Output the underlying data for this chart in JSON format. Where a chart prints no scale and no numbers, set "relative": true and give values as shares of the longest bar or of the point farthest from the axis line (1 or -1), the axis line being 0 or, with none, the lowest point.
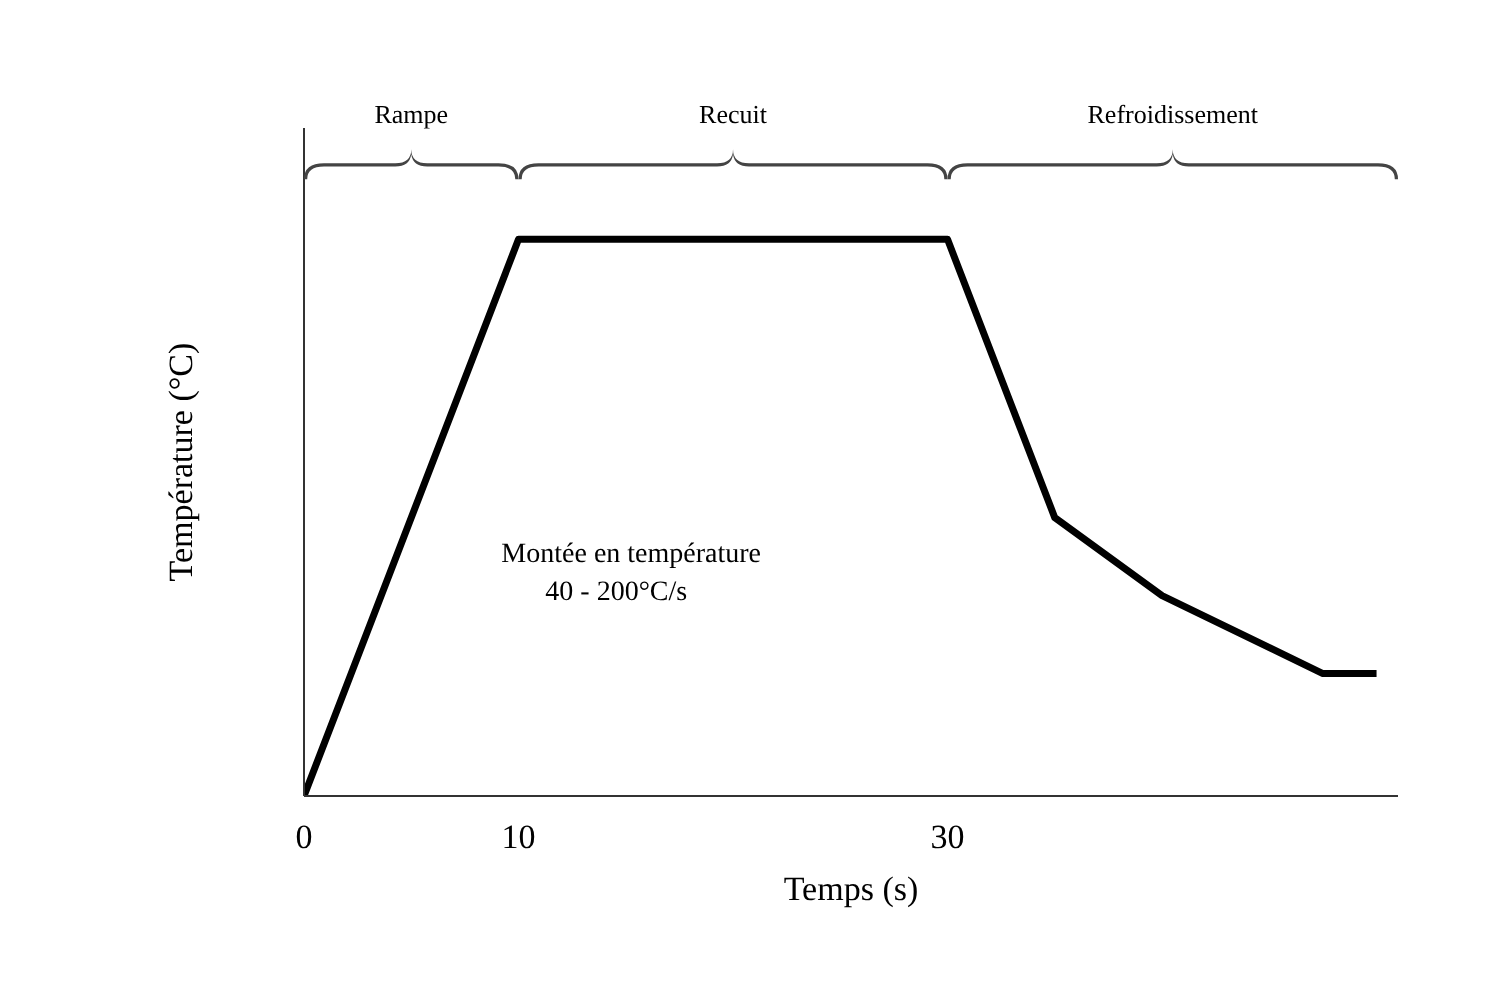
{
  "chart_data": {
    "type": "line",
    "relative": true,
    "xlabel": "Temps (s)",
    "ylabel": "Température (°C)",
    "x": [
      0,
      10,
      30,
      35,
      40,
      47.5,
      50
    ],
    "series": [
      {
        "color": "#000000",
        "values": [
          0,
          1,
          1,
          0.5,
          0.36,
          0.22,
          0.22
        ]
      }
    ],
    "xlim": [
      0,
      51
    ],
    "xticks": [
      0,
      10,
      30
    ],
    "grid": false,
    "legend": false,
    "marker": "none",
    "line_style": "solid",
    "annotations": [
      "Rampe",
      "Recuit",
      "Refroidissement",
      "Montée en température",
      "40 - 200°C/s"
    ]
  }
}
